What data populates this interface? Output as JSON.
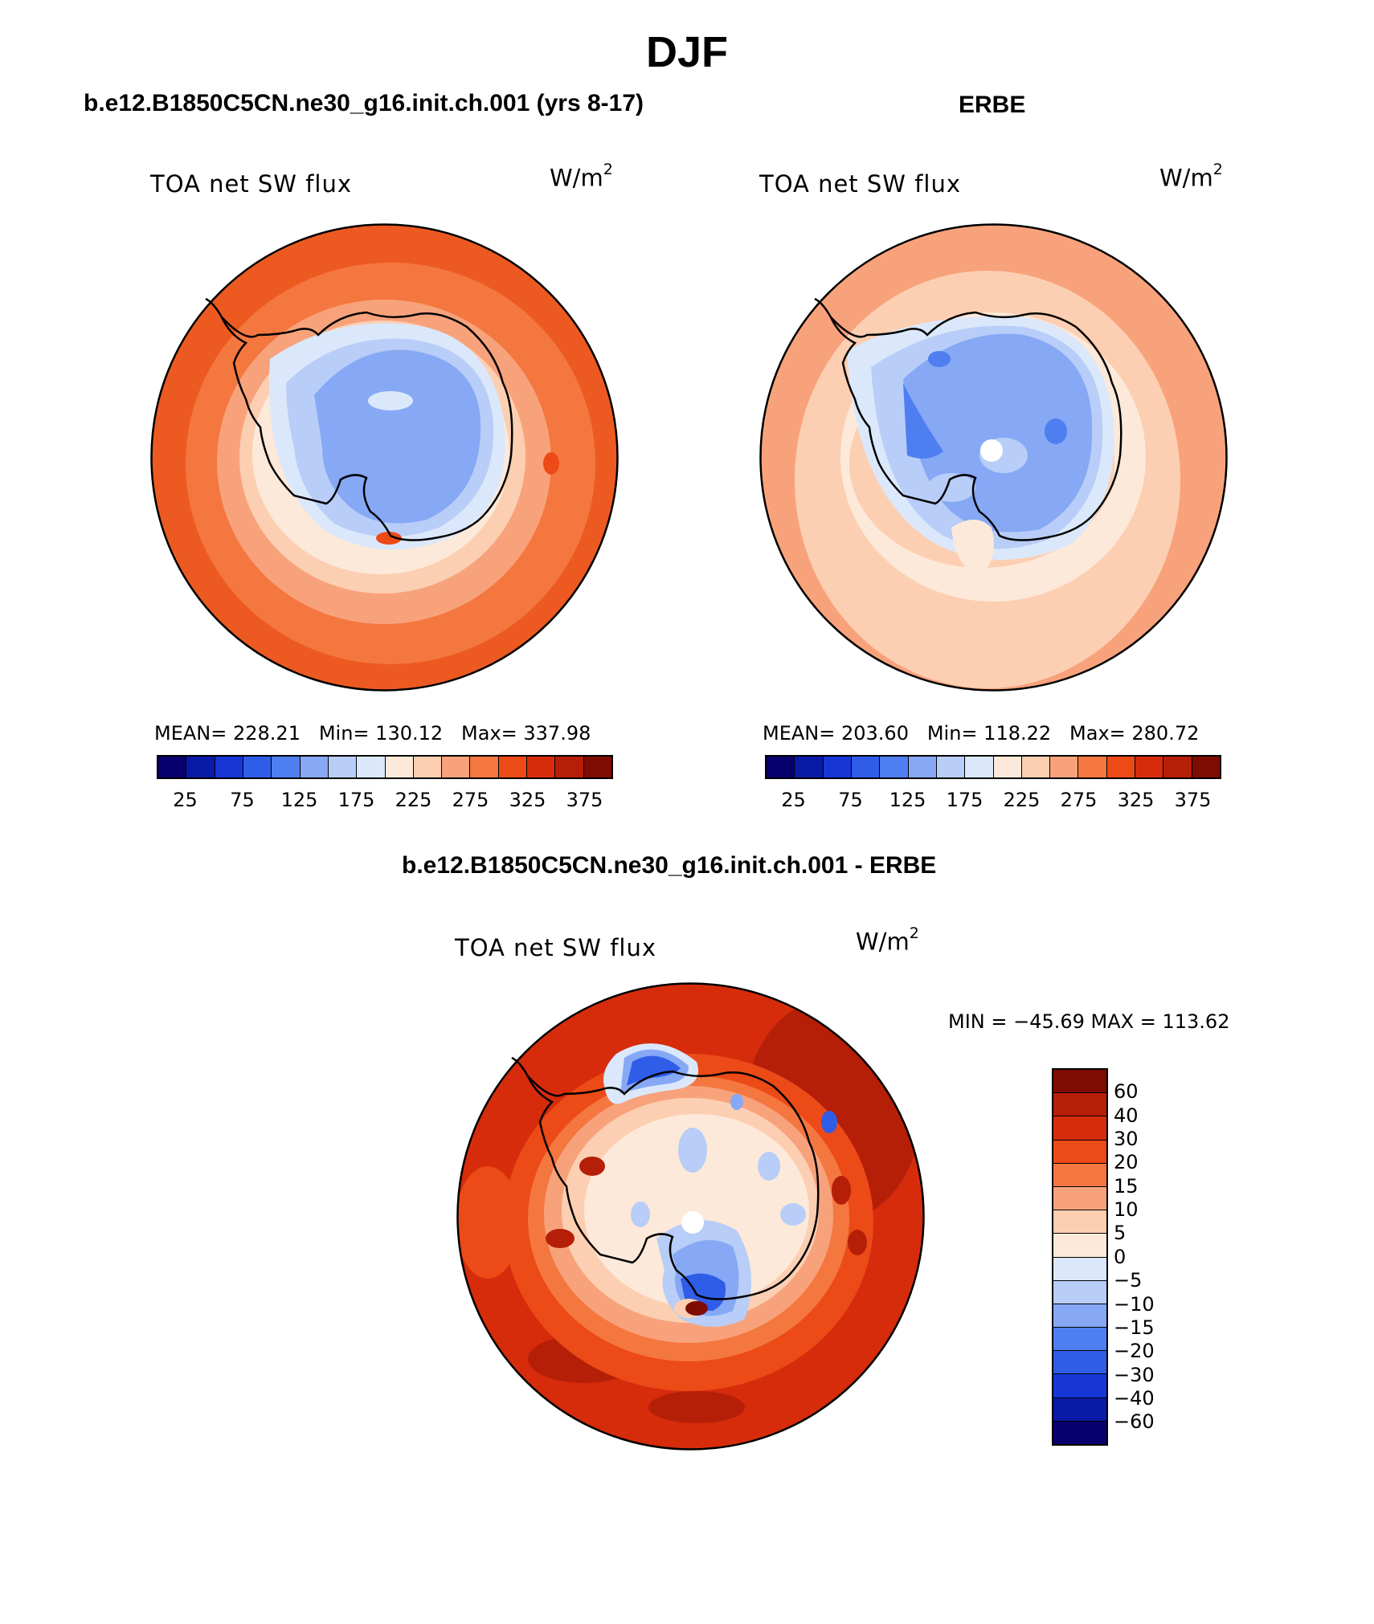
{
  "figure_title": "DJF",
  "panels": [
    {
      "title": "b.e12.B1850C5CN.ne30_g16.init.ch.001 (yrs 8-17)",
      "variable": "TOA net SW flux",
      "units_base": "W/m",
      "units_exp": "2",
      "stats": "MEAN= 228.21   Min= 130.12   Max= 337.98",
      "colorbar_ticks": [
        "25",
        "75",
        "125",
        "175",
        "225",
        "275",
        "325",
        "375"
      ]
    },
    {
      "title": "ERBE",
      "variable": "TOA net SW flux",
      "units_base": "W/m",
      "units_exp": "2",
      "stats": "MEAN= 203.60   Min= 118.22   Max= 280.72",
      "colorbar_ticks": [
        "25",
        "75",
        "125",
        "175",
        "225",
        "275",
        "325",
        "375"
      ]
    },
    {
      "title": "b.e12.B1850C5CN.ne30_g16.init.ch.001 - ERBE",
      "variable": "TOA net SW flux",
      "units_base": "W/m",
      "units_exp": "2",
      "stats": "MIN = −45.69 MAX = 113.62",
      "colorbar_ticks": [
        "60",
        "40",
        "30",
        "20",
        "15",
        "10",
        "5",
        "0",
        "−5",
        "−10",
        "−15",
        "−20",
        "−30",
        "−40",
        "−60"
      ]
    }
  ],
  "colors": {
    "abs_scale": [
      "#08006e",
      "#0a1aa8",
      "#1637d6",
      "#2f5de8",
      "#4f7ef0",
      "#86a8f5",
      "#b8cdf7",
      "#dbe8fb",
      "#fde9d9",
      "#fccfb2",
      "#f8a27c",
      "#f4773f",
      "#ec4a17",
      "#d62c0c",
      "#b51f08",
      "#7f0c02"
    ],
    "diff_scale": [
      "#7f0c02",
      "#b51f08",
      "#d62c0c",
      "#ec4a17",
      "#f4773f",
      "#f8a27c",
      "#fccfb2",
      "#fde9d9",
      "#dbe8fb",
      "#b8cdf7",
      "#86a8f5",
      "#4f7ef0",
      "#2f5de8",
      "#1637d6",
      "#0a1aa8",
      "#08006e"
    ]
  }
}
